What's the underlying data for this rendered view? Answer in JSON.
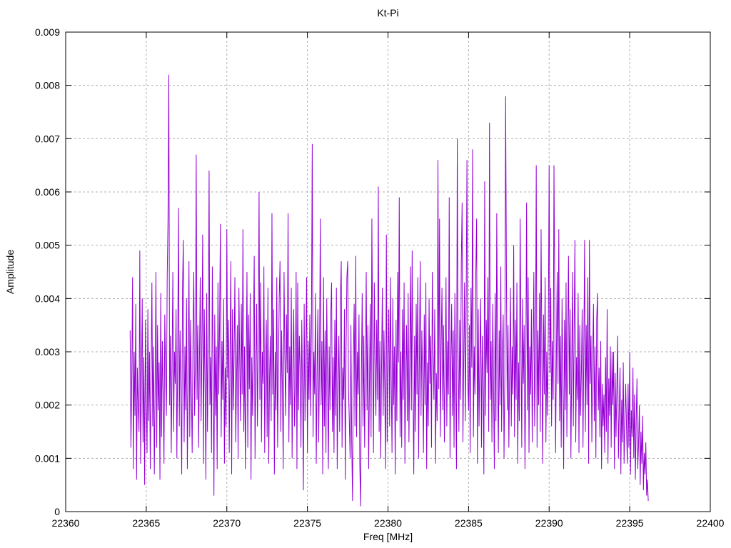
{
  "chart_data": {
    "type": "line",
    "title": "Kt-Pi",
    "xlabel": "Freq [MHz]",
    "ylabel": "Amplitude",
    "xlim": [
      22360,
      22400
    ],
    "ylim": [
      0,
      0.009
    ],
    "x_ticks": [
      22360,
      22365,
      22370,
      22375,
      22380,
      22385,
      22390,
      22395,
      22400
    ],
    "x_tick_labels": [
      "22360",
      "22365",
      "22370",
      "22375",
      "22380",
      "22385",
      "22390",
      "22395",
      "22400"
    ],
    "y_ticks": [
      0,
      0.001,
      0.002,
      0.003,
      0.004,
      0.005,
      0.006,
      0.007,
      0.008,
      0.009
    ],
    "y_tick_labels": [
      "0",
      "0.001",
      "0.002",
      "0.003",
      "0.004",
      "0.005",
      "0.006",
      "0.007",
      "0.008",
      "0.009"
    ],
    "grid": true,
    "grid_style": "dashed",
    "legend": "none",
    "line_color": "#9400d3",
    "grid_color": "#b0b0b0",
    "frame_color": "#000000",
    "x_start": 22364.0,
    "x_step": 0.05,
    "value_unit": 0.0001,
    "values": [
      34,
      12,
      25,
      44,
      8,
      30,
      18,
      39,
      6,
      27,
      20,
      15,
      49,
      9,
      24,
      40,
      13,
      29,
      5,
      36,
      21,
      11,
      38,
      17,
      30,
      8,
      26,
      43,
      16,
      31,
      7,
      23,
      45,
      12,
      35,
      19,
      28,
      6,
      41,
      14,
      32,
      22,
      9,
      37,
      26,
      18,
      44,
      55,
      82,
      20,
      33,
      11,
      27,
      45,
      15,
      30,
      24,
      38,
      10,
      29,
      57,
      16,
      34,
      22,
      7,
      42,
      51,
      13,
      31,
      19,
      40,
      8,
      25,
      47,
      14,
      36,
      23,
      11,
      33,
      45,
      18,
      28,
      67,
      21,
      35,
      12,
      28,
      44,
      17,
      30,
      52,
      9,
      38,
      24,
      6,
      41,
      15,
      33,
      64,
      20,
      29,
      11,
      46,
      26,
      3,
      37,
      18,
      31,
      8,
      43,
      22,
      35,
      54,
      14,
      32,
      21,
      40,
      9,
      27,
      16,
      53,
      25,
      36,
      11,
      30,
      47,
      7,
      38,
      19,
      29,
      44,
      13,
      24,
      35,
      10,
      42,
      28,
      17,
      39,
      22,
      53,
      15,
      31,
      8,
      26,
      45,
      12,
      37,
      23,
      41,
      6,
      29,
      18,
      34,
      48,
      10,
      27,
      39,
      16,
      32,
      60,
      21,
      43,
      13,
      30,
      24,
      46,
      11,
      28,
      36,
      14,
      42,
      9,
      25,
      33,
      17,
      56,
      22,
      38,
      7,
      30,
      19,
      44,
      12,
      27,
      40,
      47,
      15,
      34,
      23,
      8,
      45,
      29,
      18,
      37,
      26,
      56,
      13,
      31,
      20,
      42,
      10,
      28,
      38,
      16,
      24,
      45,
      8,
      43,
      19,
      33,
      27,
      12,
      36,
      22,
      4,
      39,
      17,
      29,
      44,
      11,
      32,
      21,
      37,
      18,
      35,
      69,
      14,
      30,
      22,
      41,
      9,
      26,
      38,
      13,
      28,
      55,
      20,
      32,
      7,
      44,
      16,
      34,
      11,
      40,
      24,
      8,
      31,
      19,
      37,
      43,
      15,
      29,
      11,
      36,
      18,
      42,
      8,
      25,
      33,
      15,
      40,
      47,
      12,
      27,
      21,
      38,
      6,
      31,
      44,
      47,
      23,
      17,
      10,
      35,
      13,
      2,
      28,
      39,
      16,
      48,
      14,
      30,
      22,
      37,
      9,
      1,
      26,
      41,
      16,
      33,
      12,
      28,
      45,
      19,
      35,
      8,
      24,
      39,
      14,
      55,
      31,
      11,
      43,
      27,
      18,
      36,
      21,
      61,
      15,
      32,
      10,
      27,
      42,
      18,
      34,
      23,
      8,
      52,
      13,
      29,
      38,
      16,
      44,
      25,
      11,
      40,
      20,
      31,
      7,
      36,
      17,
      45,
      28,
      59,
      14,
      30,
      12,
      38,
      21,
      43,
      9,
      26,
      35,
      17,
      41,
      13,
      28,
      46,
      19,
      49,
      24,
      7,
      33,
      15,
      39,
      22,
      44,
      10,
      29,
      47,
      18,
      34,
      25,
      11,
      37,
      20,
      43,
      8,
      28,
      16,
      40,
      24,
      33,
      12,
      45,
      30,
      21,
      38,
      9,
      26,
      17,
      66,
      23,
      55,
      14,
      31,
      42,
      19,
      35,
      13,
      27,
      44,
      16,
      32,
      22,
      59,
      10,
      28,
      39,
      18,
      34,
      12,
      41,
      24,
      8,
      70,
      30,
      15,
      36,
      21,
      47,
      58,
      13,
      29,
      43,
      17,
      38,
      66,
      25,
      19,
      35,
      11,
      42,
      27,
      68,
      14,
      31,
      22,
      45,
      55,
      9,
      38,
      16,
      29,
      40,
      12,
      33,
      24,
      7,
      62,
      18,
      36,
      26,
      44,
      15,
      73,
      21,
      32,
      13,
      39,
      23,
      8,
      41,
      17,
      56,
      28,
      11,
      34,
      20,
      46,
      15,
      30,
      37,
      10,
      25,
      78,
      44,
      19,
      35,
      12,
      27,
      42,
      16,
      31,
      22,
      50,
      14,
      36,
      21,
      43,
      9,
      28,
      17,
      55,
      33,
      12,
      40,
      24,
      35,
      8,
      26,
      58,
      19,
      44,
      11,
      31,
      22,
      38,
      13,
      29,
      45,
      16,
      27,
      65,
      12,
      34,
      20,
      41,
      15,
      53,
      28,
      9,
      37,
      22,
      44,
      13,
      30,
      18,
      35,
      65,
      26,
      42,
      16,
      32,
      21,
      65,
      39,
      11,
      29,
      45,
      24,
      53,
      17,
      33,
      12,
      40,
      25,
      8,
      36,
      19,
      43,
      14,
      31,
      48,
      22,
      38,
      10,
      27,
      45,
      16,
      34,
      51,
      13,
      29,
      21,
      41,
      11,
      35,
      18,
      26,
      38,
      12,
      30,
      51,
      15,
      35,
      20,
      44,
      9,
      51,
      24,
      33,
      13,
      28,
      39,
      17,
      31,
      10,
      36,
      41,
      19,
      27,
      14,
      32,
      8,
      24,
      16,
      22,
      11,
      29,
      15,
      38,
      9,
      25,
      18,
      31,
      12,
      30,
      20,
      30,
      8,
      26,
      14,
      23,
      33,
      10,
      19,
      27,
      7,
      21,
      13,
      28,
      9,
      17,
      24,
      16,
      9,
      24,
      12,
      30,
      7,
      19,
      14,
      27,
      10,
      22,
      6,
      17,
      25,
      8,
      13,
      20,
      5,
      15,
      9,
      18,
      4,
      11,
      7,
      13,
      3,
      6,
      2
    ]
  }
}
